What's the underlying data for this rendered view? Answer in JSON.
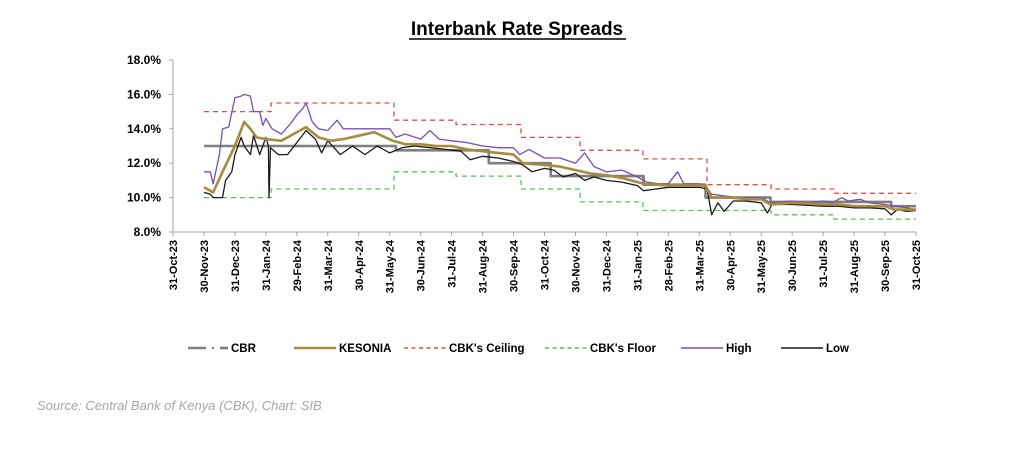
{
  "chart_data": {
    "type": "line",
    "title": "Interbank Rate Spreads",
    "xlabel": "",
    "ylabel": "",
    "ylim": [
      8.0,
      18.0
    ],
    "yticks": [
      "8.0%",
      "10.0%",
      "12.0%",
      "14.0%",
      "16.0%",
      "18.0%"
    ],
    "ytick_values": [
      8,
      10,
      12,
      14,
      16,
      18
    ],
    "x_unit": "months since 31-Oct-23",
    "xlim": [
      0,
      24
    ],
    "xticks": [
      "31-Oct-23",
      "30-Nov-23",
      "31-Dec-23",
      "31-Jan-24",
      "29-Feb-24",
      "31-Mar-24",
      "30-Apr-24",
      "31-May-24",
      "30-Jun-24",
      "31-Jul-24",
      "31-Aug-24",
      "30-Sep-24",
      "31-Oct-24",
      "30-Nov-24",
      "31-Dec-24",
      "31-Jan-25",
      "28-Feb-25",
      "31-Mar-25",
      "30-Apr-25",
      "31-May-25",
      "30-Jun-25",
      "31-Jul-25",
      "31-Aug-25",
      "30-Sep-25",
      "31-Oct-25"
    ],
    "grid": false,
    "legend_position": "bottom",
    "series": [
      {
        "name": "CBR",
        "color": "#7f7f7f",
        "style": "dash-dot",
        "points": [
          [
            1,
            13.0
          ],
          [
            7.2,
            13.0
          ],
          [
            7.2,
            12.75
          ],
          [
            10.2,
            12.75
          ],
          [
            10.2,
            12.0
          ],
          [
            12.2,
            12.0
          ],
          [
            12.2,
            11.25
          ],
          [
            15.2,
            11.25
          ],
          [
            15.2,
            10.75
          ],
          [
            17.2,
            10.75
          ],
          [
            17.2,
            10.0
          ],
          [
            19.3,
            10.0
          ],
          [
            19.3,
            9.75
          ],
          [
            23.2,
            9.75
          ],
          [
            23.2,
            9.5
          ],
          [
            24,
            9.5
          ]
        ]
      },
      {
        "name": "KESONIA",
        "color": "#a88b3e",
        "style": "solid",
        "points": [
          [
            1,
            10.6
          ],
          [
            1.3,
            10.3
          ],
          [
            1.6,
            11.5
          ],
          [
            2.0,
            13.0
          ],
          [
            2.3,
            14.4
          ],
          [
            2.5,
            14.0
          ],
          [
            2.7,
            13.5
          ],
          [
            3.0,
            13.4
          ],
          [
            3.5,
            13.3
          ],
          [
            4.0,
            13.8
          ],
          [
            4.3,
            14.1
          ],
          [
            4.7,
            13.5
          ],
          [
            5.1,
            13.3
          ],
          [
            5.5,
            13.4
          ],
          [
            6.0,
            13.6
          ],
          [
            6.5,
            13.8
          ],
          [
            7.1,
            13.3
          ],
          [
            7.5,
            13.1
          ],
          [
            8.0,
            13.1
          ],
          [
            8.5,
            13.0
          ],
          [
            9.0,
            13.0
          ],
          [
            9.5,
            12.8
          ],
          [
            10.0,
            12.7
          ],
          [
            10.5,
            12.6
          ],
          [
            11.0,
            12.5
          ],
          [
            11.3,
            12.0
          ],
          [
            12.0,
            11.9
          ],
          [
            12.5,
            11.8
          ],
          [
            13.0,
            11.6
          ],
          [
            13.5,
            11.4
          ],
          [
            14.0,
            11.3
          ],
          [
            14.6,
            11.1
          ],
          [
            15.2,
            10.8
          ],
          [
            16.0,
            10.7
          ],
          [
            16.6,
            10.7
          ],
          [
            17.2,
            10.7
          ],
          [
            17.4,
            10.0
          ],
          [
            18.0,
            10.0
          ],
          [
            18.6,
            9.9
          ],
          [
            19.0,
            9.9
          ],
          [
            19.3,
            9.6
          ],
          [
            20.0,
            9.7
          ],
          [
            20.5,
            9.65
          ],
          [
            21.0,
            9.6
          ],
          [
            21.5,
            9.6
          ],
          [
            22.0,
            9.5
          ],
          [
            22.5,
            9.5
          ],
          [
            23.0,
            9.5
          ],
          [
            23.3,
            9.3
          ],
          [
            23.7,
            9.3
          ],
          [
            24,
            9.3
          ]
        ]
      },
      {
        "name": "CBK's Ceiling",
        "color": "#e84a4a",
        "style": "dashed",
        "points": [
          [
            1,
            15.0
          ],
          [
            3.17,
            15.0
          ],
          [
            3.17,
            15.5
          ],
          [
            7.14,
            15.5
          ],
          [
            7.14,
            14.5
          ],
          [
            9.14,
            14.5
          ],
          [
            9.14,
            14.25
          ],
          [
            11.24,
            14.25
          ],
          [
            11.24,
            13.5
          ],
          [
            13.15,
            13.5
          ],
          [
            13.15,
            12.75
          ],
          [
            15.18,
            12.75
          ],
          [
            15.18,
            12.25
          ],
          [
            17.25,
            12.25
          ],
          [
            17.25,
            10.75
          ],
          [
            19.32,
            10.75
          ],
          [
            19.32,
            10.5
          ],
          [
            21.35,
            10.5
          ],
          [
            21.35,
            10.25
          ],
          [
            24,
            10.25
          ]
        ]
      },
      {
        "name": "CBK's Floor",
        "color": "#5cbf5c",
        "style": "dashed",
        "points": [
          [
            1,
            10.0
          ],
          [
            3.17,
            10.0
          ],
          [
            3.17,
            10.5
          ],
          [
            7.14,
            10.5
          ],
          [
            7.14,
            11.5
          ],
          [
            9.14,
            11.5
          ],
          [
            9.14,
            11.25
          ],
          [
            11.24,
            11.25
          ],
          [
            11.24,
            10.5
          ],
          [
            13.15,
            10.5
          ],
          [
            13.15,
            9.75
          ],
          [
            15.18,
            9.75
          ],
          [
            15.18,
            9.25
          ],
          [
            19.32,
            9.25
          ],
          [
            19.32,
            9.0
          ],
          [
            21.35,
            9.0
          ],
          [
            21.35,
            8.75
          ],
          [
            24,
            8.75
          ]
        ]
      },
      {
        "name": "High",
        "color": "#7b4fb0",
        "style": "solid",
        "points": [
          [
            1,
            11.5
          ],
          [
            1.2,
            11.5
          ],
          [
            1.3,
            10.8
          ],
          [
            1.5,
            12.5
          ],
          [
            1.6,
            14.0
          ],
          [
            1.8,
            14.1
          ],
          [
            2.0,
            15.8
          ],
          [
            2.2,
            15.9
          ],
          [
            2.3,
            16.0
          ],
          [
            2.5,
            15.9
          ],
          [
            2.6,
            15.0
          ],
          [
            2.8,
            15.0
          ],
          [
            2.9,
            14.2
          ],
          [
            3.0,
            14.6
          ],
          [
            3.2,
            14.0
          ],
          [
            3.5,
            13.7
          ],
          [
            3.8,
            14.3
          ],
          [
            4.0,
            14.8
          ],
          [
            4.2,
            15.2
          ],
          [
            4.3,
            15.5
          ],
          [
            4.5,
            14.4
          ],
          [
            4.7,
            14.0
          ],
          [
            5.0,
            13.9
          ],
          [
            5.3,
            14.5
          ],
          [
            5.5,
            14.0
          ],
          [
            6.0,
            14.0
          ],
          [
            6.5,
            14.0
          ],
          [
            7.0,
            14.0
          ],
          [
            7.2,
            13.5
          ],
          [
            7.5,
            13.7
          ],
          [
            8.0,
            13.4
          ],
          [
            8.3,
            13.9
          ],
          [
            8.6,
            13.4
          ],
          [
            9.0,
            13.3
          ],
          [
            9.5,
            13.2
          ],
          [
            10.0,
            13.0
          ],
          [
            10.5,
            12.9
          ],
          [
            11.0,
            12.9
          ],
          [
            11.2,
            12.5
          ],
          [
            11.5,
            12.8
          ],
          [
            12.0,
            12.3
          ],
          [
            12.5,
            12.3
          ],
          [
            13.0,
            12.0
          ],
          [
            13.3,
            12.6
          ],
          [
            13.6,
            11.8
          ],
          [
            14.0,
            11.5
          ],
          [
            14.5,
            11.6
          ],
          [
            15.0,
            11.2
          ],
          [
            15.3,
            10.9
          ],
          [
            15.7,
            10.8
          ],
          [
            16.0,
            10.8
          ],
          [
            16.3,
            11.5
          ],
          [
            16.5,
            10.8
          ],
          [
            17.0,
            10.8
          ],
          [
            17.2,
            10.7
          ],
          [
            17.4,
            10.2
          ],
          [
            17.8,
            10.1
          ],
          [
            18.3,
            10.0
          ],
          [
            19.0,
            10.0
          ],
          [
            19.3,
            9.7
          ],
          [
            20.0,
            9.8
          ],
          [
            20.5,
            9.7
          ],
          [
            21.0,
            9.8
          ],
          [
            21.3,
            9.7
          ],
          [
            21.6,
            10.0
          ],
          [
            21.8,
            9.8
          ],
          [
            22.2,
            9.9
          ],
          [
            22.5,
            9.7
          ],
          [
            23.0,
            9.6
          ],
          [
            23.3,
            9.5
          ],
          [
            23.7,
            9.4
          ],
          [
            24,
            9.3
          ]
        ]
      },
      {
        "name": "Low",
        "color": "#1a1a1a",
        "style": "solid",
        "points": [
          [
            1,
            10.3
          ],
          [
            1.2,
            10.2
          ],
          [
            1.3,
            10.0
          ],
          [
            1.6,
            10.0
          ],
          [
            1.7,
            11.0
          ],
          [
            1.9,
            11.5
          ],
          [
            2.0,
            12.5
          ],
          [
            2.2,
            13.5
          ],
          [
            2.3,
            13.0
          ],
          [
            2.5,
            12.5
          ],
          [
            2.6,
            13.6
          ],
          [
            2.8,
            12.5
          ],
          [
            3.0,
            13.5
          ],
          [
            3.08,
            13.0
          ],
          [
            3.1,
            10.0
          ],
          [
            3.15,
            12.9
          ],
          [
            3.4,
            12.5
          ],
          [
            3.7,
            12.5
          ],
          [
            4.0,
            13.2
          ],
          [
            4.3,
            13.9
          ],
          [
            4.6,
            13.4
          ],
          [
            4.8,
            12.6
          ],
          [
            5.0,
            13.3
          ],
          [
            5.4,
            12.5
          ],
          [
            5.8,
            13.0
          ],
          [
            6.2,
            12.5
          ],
          [
            6.6,
            13.0
          ],
          [
            7.0,
            12.6
          ],
          [
            7.4,
            12.9
          ],
          [
            7.8,
            13.0
          ],
          [
            8.3,
            12.9
          ],
          [
            8.8,
            12.8
          ],
          [
            9.3,
            12.7
          ],
          [
            9.6,
            12.2
          ],
          [
            10.0,
            12.4
          ],
          [
            10.5,
            12.3
          ],
          [
            11.0,
            12.1
          ],
          [
            11.3,
            11.9
          ],
          [
            11.6,
            11.5
          ],
          [
            12.0,
            11.7
          ],
          [
            12.3,
            11.6
          ],
          [
            12.6,
            11.2
          ],
          [
            13.0,
            11.4
          ],
          [
            13.3,
            11.0
          ],
          [
            13.6,
            11.2
          ],
          [
            14.0,
            11.0
          ],
          [
            14.5,
            10.9
          ],
          [
            15.0,
            10.7
          ],
          [
            15.2,
            10.4
          ],
          [
            15.6,
            10.5
          ],
          [
            16.0,
            10.6
          ],
          [
            16.5,
            10.6
          ],
          [
            17.0,
            10.6
          ],
          [
            17.25,
            10.5
          ],
          [
            17.4,
            9.0
          ],
          [
            17.6,
            9.7
          ],
          [
            17.8,
            9.2
          ],
          [
            18.1,
            9.8
          ],
          [
            18.5,
            9.8
          ],
          [
            19.0,
            9.7
          ],
          [
            19.2,
            9.1
          ],
          [
            19.35,
            9.6
          ],
          [
            19.7,
            9.6
          ],
          [
            20.0,
            9.6
          ],
          [
            20.5,
            9.55
          ],
          [
            21.0,
            9.5
          ],
          [
            21.5,
            9.5
          ],
          [
            22.0,
            9.4
          ],
          [
            22.5,
            9.4
          ],
          [
            23.0,
            9.35
          ],
          [
            23.2,
            9.0
          ],
          [
            23.4,
            9.3
          ],
          [
            23.7,
            9.2
          ],
          [
            24,
            9.25
          ]
        ]
      }
    ]
  },
  "source_note": "Source: Central Bank of Kenya (CBK), Chart: SIB"
}
